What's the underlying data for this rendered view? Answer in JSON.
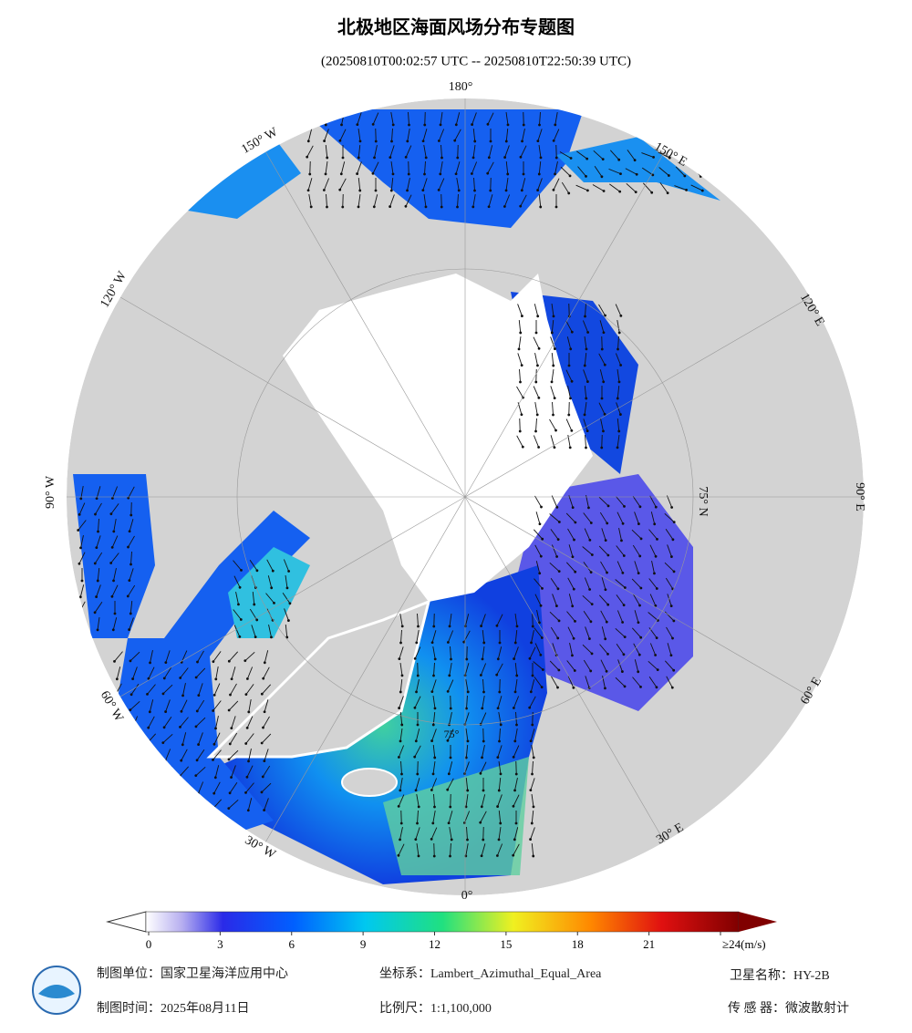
{
  "header": {
    "title": "北极地区海面风场分布专题图",
    "subtitle": "(20250810T00:02:57 UTC -- 20250810T22:50:39 UTC)"
  },
  "graticule": {
    "top": "180°",
    "bottom": "0°",
    "east_150": "150° E",
    "east_120": "120° E",
    "east_90": "90° E",
    "east_60": "60° E",
    "east_30": "30° E",
    "west_150": "150° W",
    "west_120": "120° W",
    "west_90": "90° W",
    "west_60": "60° W",
    "west_30": "30° W",
    "lat_75n": "75° N",
    "lat_75": "75°"
  },
  "colorbar": {
    "ticks": [
      0,
      3,
      6,
      9,
      12,
      15,
      18,
      21,
      {
        "value": 24,
        "label": "≥24(m/s)"
      }
    ]
  },
  "footer": {
    "unit": "制图单位：国家卫星海洋应用中心",
    "crs": "坐标系：Lambert_Azimuthal_Equal_Area",
    "satellite": "卫星名称：HY-2B",
    "date": "制图时间：2025年08月11日",
    "scale": "比例尺：1:1,100,000",
    "sensor": "传 感 器：微波散射计"
  }
}
